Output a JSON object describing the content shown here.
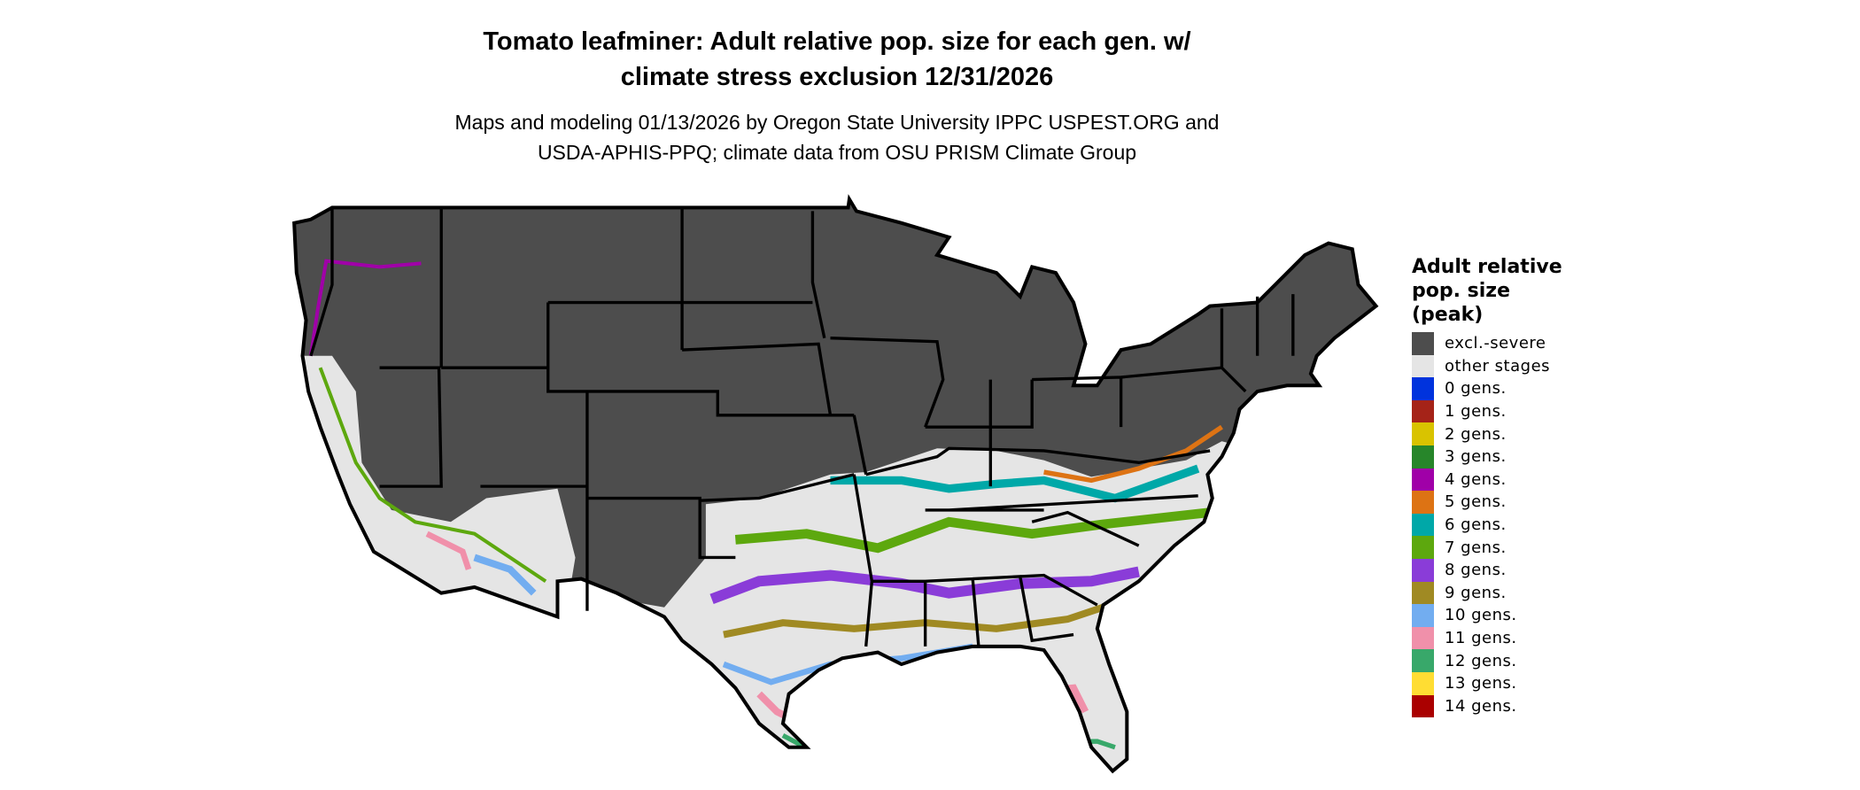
{
  "title": {
    "line1": "Tomato leafminer: Adult relative pop. size for each gen. w/",
    "line2": "climate stress exclusion 12/31/2026"
  },
  "subtitle": {
    "line1": "Maps and modeling 01/13/2026 by Oregon State University IPPC USPEST.ORG and",
    "line2": "USDA-APHIS-PPQ; climate data from OSU PRISM Climate Group"
  },
  "legend": {
    "title_lines": [
      "Adult relative",
      "pop. size",
      "(peak)"
    ],
    "items": [
      {
        "label": "excl.-severe",
        "color": "#4d4d4d"
      },
      {
        "label": "other stages",
        "color": "#e5e5e5"
      },
      {
        "label": "0 gens.",
        "color": "#0033dd"
      },
      {
        "label": "1 gens.",
        "color": "#a52318"
      },
      {
        "label": "2 gens.",
        "color": "#d9c300"
      },
      {
        "label": "3 gens.",
        "color": "#27862a"
      },
      {
        "label": "4 gens.",
        "color": "#a000a8"
      },
      {
        "label": "5 gens.",
        "color": "#dd7314"
      },
      {
        "label": "6 gens.",
        "color": "#00a8a8"
      },
      {
        "label": "7 gens.",
        "color": "#5da80e"
      },
      {
        "label": "8 gens.",
        "color": "#8a3cd8"
      },
      {
        "label": "9 gens.",
        "color": "#a08a23"
      },
      {
        "label": "10 gens.",
        "color": "#72adf0"
      },
      {
        "label": "11 gens.",
        "color": "#f090aa"
      },
      {
        "label": "12 gens.",
        "color": "#38a86a"
      },
      {
        "label": "13 gens.",
        "color": "#ffdd33"
      },
      {
        "label": "14 gens.",
        "color": "#aa0000"
      }
    ]
  }
}
